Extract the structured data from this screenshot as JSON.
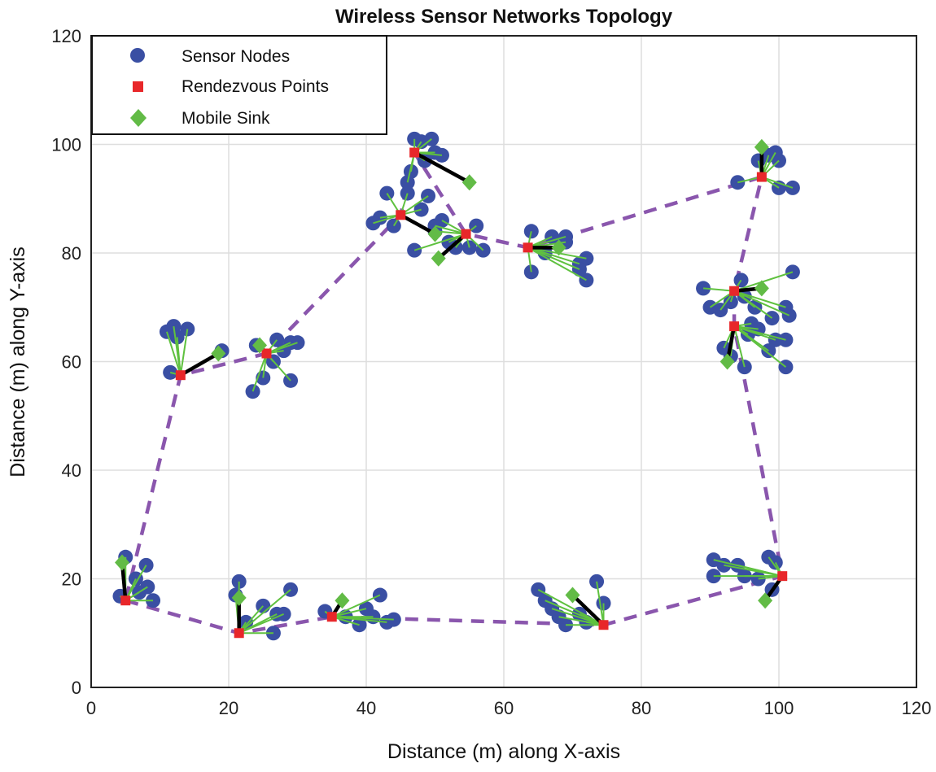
{
  "chart_data": {
    "type": "scatter",
    "title": "Wireless Sensor Networks Topology",
    "xlabel": "Distance (m) along X-axis",
    "ylabel": "Distance (m) along Y-axis",
    "xlim": [
      0,
      120
    ],
    "ylim": [
      0,
      120
    ],
    "xticks": [
      "0",
      "20",
      "40",
      "60",
      "80",
      "100",
      "120"
    ],
    "yticks": [
      "0",
      "20",
      "40",
      "60",
      "80",
      "100",
      "120"
    ],
    "grid": true,
    "legend_position": "top-left",
    "legend": [
      "Sensor Nodes",
      "Rendezvous Points",
      "Mobile Sink"
    ],
    "colors": {
      "nodes": "#3a4fa3",
      "rp": "#e8272a",
      "sink": "#62bb46",
      "link": "#5fc13f",
      "path": "#8a56ad",
      "sinkline": "#000000"
    },
    "clusters": [
      {
        "rp": [
          5,
          16
        ],
        "sink": [
          4.5,
          23
        ],
        "nodes": [
          [
            5,
            24
          ],
          [
            4.2,
            16.8
          ],
          [
            8,
            22.5
          ],
          [
            8.2,
            18.5
          ],
          [
            9,
            16
          ],
          [
            6.5,
            20
          ],
          [
            7,
            17.5
          ]
        ]
      },
      {
        "rp": [
          21.5,
          10
        ],
        "sink": [
          21.5,
          16.5
        ],
        "nodes": [
          [
            21.5,
            19.5
          ],
          [
            21,
            17
          ],
          [
            22.5,
            12
          ],
          [
            25,
            15
          ],
          [
            26.5,
            10
          ],
          [
            27,
            13.5
          ],
          [
            28,
            13.5
          ],
          [
            29,
            18
          ]
        ]
      },
      {
        "rp": [
          35,
          13
        ],
        "sink": [
          36.5,
          16
        ],
        "nodes": [
          [
            34,
            14
          ],
          [
            37,
            13
          ],
          [
            39,
            11.5
          ],
          [
            41,
            13
          ],
          [
            42,
            17
          ],
          [
            43,
            12
          ],
          [
            44,
            12.5
          ],
          [
            40,
            14.5
          ]
        ]
      },
      {
        "rp": [
          74.5,
          11.5
        ],
        "sink": [
          70,
          17
        ],
        "nodes": [
          [
            65,
            18
          ],
          [
            66,
            16
          ],
          [
            67,
            14.5
          ],
          [
            68,
            13
          ],
          [
            69,
            11.5
          ],
          [
            71,
            13.5
          ],
          [
            73.5,
            19.5
          ],
          [
            74.5,
            15.5
          ],
          [
            72,
            12
          ]
        ]
      },
      {
        "rp": [
          100.5,
          20.5
        ],
        "sink": [
          98,
          16
        ],
        "nodes": [
          [
            90.5,
            23.5
          ],
          [
            90.5,
            20.5
          ],
          [
            92,
            22.5
          ],
          [
            94,
            22.5
          ],
          [
            95,
            20.5
          ],
          [
            98.5,
            24
          ],
          [
            99.5,
            23
          ],
          [
            97,
            20
          ],
          [
            99,
            18
          ]
        ]
      },
      {
        "rp": [
          93.5,
          66.5
        ],
        "sink": [
          92.5,
          60
        ],
        "nodes": [
          [
            92,
            62.5
          ],
          [
            93,
            61
          ],
          [
            95,
            59
          ],
          [
            96,
            67
          ],
          [
            97,
            66
          ],
          [
            98.5,
            62
          ],
          [
            99.5,
            64
          ],
          [
            101,
            59
          ],
          [
            101,
            64
          ],
          [
            95.5,
            65
          ]
        ]
      },
      {
        "rp": [
          93.5,
          73
        ],
        "sink": [
          97.5,
          73.5
        ],
        "nodes": [
          [
            89,
            73.5
          ],
          [
            90,
            70
          ],
          [
            91.5,
            69.5
          ],
          [
            93,
            71
          ],
          [
            94.5,
            75
          ],
          [
            96.5,
            70
          ],
          [
            99,
            68
          ],
          [
            101,
            70
          ],
          [
            102,
            76.5
          ],
          [
            101.5,
            68.5
          ],
          [
            95,
            72
          ]
        ]
      },
      {
        "rp": [
          97.5,
          94
        ],
        "sink": [
          97.5,
          99.5
        ],
        "nodes": [
          [
            94,
            93
          ],
          [
            97,
            97
          ],
          [
            98.5,
            98
          ],
          [
            100,
            97
          ],
          [
            100,
            92
          ],
          [
            102,
            92
          ],
          [
            99.5,
            98.5
          ]
        ]
      },
      {
        "rp": [
          63.5,
          81
        ],
        "sink": [
          68,
          81
        ],
        "nodes": [
          [
            64,
            84
          ],
          [
            64,
            76.5
          ],
          [
            66,
            80
          ],
          [
            67,
            83
          ],
          [
            69,
            83
          ],
          [
            69,
            82
          ],
          [
            71,
            78
          ],
          [
            72,
            79
          ],
          [
            71,
            77
          ],
          [
            72,
            75
          ]
        ]
      },
      {
        "rp": [
          54.5,
          83.5
        ],
        "sink": [
          50.5,
          79
        ],
        "nodes": [
          [
            50,
            85
          ],
          [
            50,
            84
          ],
          [
            52,
            82
          ],
          [
            53,
            81
          ],
          [
            55,
            81
          ],
          [
            56,
            85
          ],
          [
            57,
            80.5
          ],
          [
            47,
            80.5
          ],
          [
            51,
            86
          ]
        ]
      },
      {
        "rp": [
          45,
          87
        ],
        "sink": [
          50,
          83.5
        ],
        "nodes": [
          [
            41,
            85.5
          ],
          [
            42,
            86.5
          ],
          [
            43,
            91
          ],
          [
            44,
            85
          ],
          [
            46,
            91
          ],
          [
            49,
            90.5
          ],
          [
            48,
            88
          ]
        ]
      },
      {
        "rp": [
          47,
          98.5
        ],
        "sink": [
          55,
          93
        ],
        "nodes": [
          [
            47,
            101
          ],
          [
            48,
            100.5
          ],
          [
            49.5,
            101
          ],
          [
            50,
            98.5
          ],
          [
            51,
            98
          ],
          [
            46,
            93
          ],
          [
            46.5,
            95
          ],
          [
            48.5,
            97
          ]
        ]
      },
      {
        "rp": [
          25.5,
          61.5
        ],
        "sink": [
          24.5,
          63
        ],
        "nodes": [
          [
            24,
            63
          ],
          [
            25,
            57
          ],
          [
            26.5,
            60
          ],
          [
            27,
            64
          ],
          [
            28,
            62
          ],
          [
            29,
            63.5
          ],
          [
            30,
            63.5
          ],
          [
            29,
            56.5
          ],
          [
            23.5,
            54.5
          ]
        ]
      },
      {
        "rp": [
          13,
          57.5
        ],
        "sink": [
          18.5,
          61.5
        ],
        "nodes": [
          [
            11,
            65.5
          ],
          [
            12,
            66.5
          ],
          [
            12.5,
            64.5
          ],
          [
            14,
            66
          ],
          [
            11.5,
            58
          ],
          [
            19,
            62
          ]
        ]
      }
    ],
    "tour_order": [
      0,
      1,
      2,
      3,
      4,
      5,
      6,
      7,
      8,
      9,
      11,
      10,
      12,
      13,
      0
    ]
  }
}
